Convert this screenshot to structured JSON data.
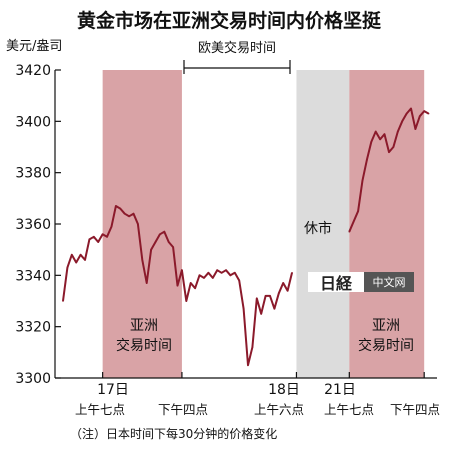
{
  "title": "黄金市场在亚洲交易时间内价格坚挺",
  "unit_label": "美元/盎司",
  "session_label": "欧美交易时间",
  "closed_label": "休市",
  "region_labels": [
    [
      "亚洲",
      "交易时间"
    ],
    [
      "亚洲",
      "交易时间"
    ]
  ],
  "date_labels": [
    "17日",
    "18日",
    "21日"
  ],
  "time_labels": [
    "上午七点",
    "下午四点",
    "上午六点",
    "上午七点",
    "下午四点"
  ],
  "note": "（注）日本时间下每30分钟的价格变化",
  "watermark": {
    "jp": "日経",
    "cn": "中文网"
  },
  "colors": {
    "asia_band": "#d9a3a6",
    "closed_band": "#dcdcdc",
    "line": "#8b1a2b",
    "text": "#111111"
  },
  "chart_data": {
    "type": "line",
    "title": "黄金市场在亚洲交易时间内价格坚挺",
    "ylabel": "美元/盎司",
    "ylim": [
      3300,
      3420
    ],
    "yticks": [
      3300,
      3320,
      3340,
      3360,
      3380,
      3400,
      3420
    ],
    "grid": false,
    "xlim": [
      0,
      84
    ],
    "bands": [
      {
        "type": "asia",
        "from": 9,
        "to": 27,
        "label": "亚洲交易时间"
      },
      {
        "type": "closed",
        "from": 53,
        "to": 65,
        "label": "休市"
      },
      {
        "type": "asia",
        "from": 65,
        "to": 82,
        "label": "亚洲交易时间"
      }
    ],
    "series": [
      {
        "segment": 1,
        "x": [
          0,
          1,
          2,
          3,
          4,
          5,
          6,
          7,
          8,
          9,
          10,
          11,
          12,
          13,
          14,
          15,
          16,
          17,
          18,
          19,
          20,
          21,
          22,
          23,
          24,
          25,
          26,
          27,
          28,
          29,
          30,
          31,
          32,
          33,
          34,
          35,
          36,
          37,
          38,
          39,
          40,
          41,
          42,
          43,
          44,
          45,
          46,
          47,
          48,
          49,
          50,
          51,
          52
        ],
        "values": [
          3330,
          3343,
          3348,
          3345,
          3348,
          3346,
          3354,
          3355,
          3353,
          3356,
          3355,
          3359,
          3367,
          3366,
          3364,
          3363,
          3364,
          3360,
          3346,
          3337,
          3350,
          3353,
          3356,
          3357,
          3353,
          3351,
          3336,
          3342,
          3330,
          3337,
          3335,
          3340,
          3339,
          3341,
          3339,
          3342,
          3341,
          3342,
          3340,
          3341,
          3338,
          3327,
          3305,
          3312,
          3331,
          3325,
          3332,
          3332,
          3327,
          3333,
          3337,
          3334,
          3341
        ]
      },
      {
        "segment": 2,
        "x": [
          65,
          66,
          67,
          68,
          69,
          70,
          71,
          72,
          73,
          74,
          75,
          76,
          77,
          78,
          79,
          80,
          81,
          82,
          83
        ],
        "values": [
          3357,
          3361,
          3365,
          3377,
          3385,
          3392,
          3396,
          3393,
          3395,
          3388,
          3390,
          3396,
          3400,
          3403,
          3405,
          3397,
          3402,
          3404,
          3403
        ]
      }
    ]
  }
}
